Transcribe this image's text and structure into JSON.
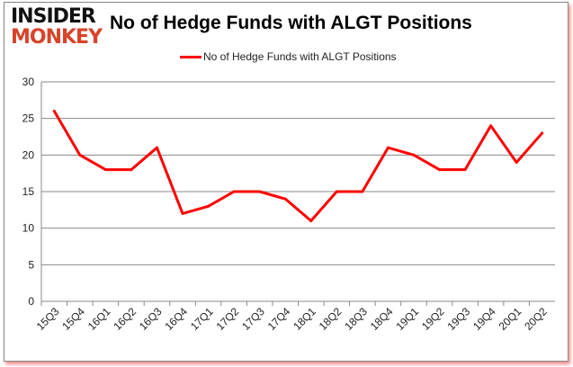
{
  "logo": {
    "line1": "INSIDER",
    "line2": "MONKEY"
  },
  "chart_data": {
    "type": "line",
    "title": "No of Hedge Funds with ALGT Positions",
    "xlabel": "",
    "ylabel": "",
    "ylim": [
      0,
      30
    ],
    "yticks": [
      0,
      5,
      10,
      15,
      20,
      25,
      30
    ],
    "grid": true,
    "legend": "top-center",
    "categories": [
      "15Q3",
      "15Q4",
      "16Q1",
      "16Q2",
      "16Q3",
      "16Q4",
      "17Q1",
      "17Q2",
      "17Q3",
      "17Q4",
      "18Q1",
      "18Q2",
      "18Q3",
      "18Q4",
      "19Q1",
      "19Q2",
      "19Q3",
      "19Q4",
      "20Q1",
      "20Q2"
    ],
    "series": [
      {
        "name": "No of Hedge Funds with ALGT Positions",
        "color": "#ff0000",
        "values": [
          26,
          20,
          18,
          18,
          21,
          12,
          13,
          15,
          15,
          14,
          11,
          15,
          15,
          21,
          20,
          18,
          18,
          24,
          19,
          23
        ]
      }
    ]
  }
}
